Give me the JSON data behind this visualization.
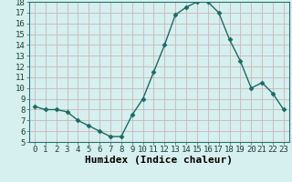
{
  "x": [
    0,
    1,
    2,
    3,
    4,
    5,
    6,
    7,
    8,
    9,
    10,
    11,
    12,
    13,
    14,
    15,
    16,
    17,
    18,
    19,
    20,
    21,
    22,
    23
  ],
  "y": [
    8.3,
    8.0,
    8.0,
    7.8,
    7.0,
    6.5,
    6.0,
    5.5,
    5.5,
    7.5,
    9.0,
    11.5,
    14.0,
    16.8,
    17.5,
    18.0,
    18.0,
    17.0,
    14.5,
    12.5,
    10.0,
    10.5,
    9.5,
    8.0
  ],
  "xlabel": "Humidex (Indice chaleur)",
  "ylim": [
    5,
    18
  ],
  "xlim": [
    -0.5,
    23.5
  ],
  "yticks": [
    5,
    6,
    7,
    8,
    9,
    10,
    11,
    12,
    13,
    14,
    15,
    16,
    17,
    18
  ],
  "xticks": [
    0,
    1,
    2,
    3,
    4,
    5,
    6,
    7,
    8,
    9,
    10,
    11,
    12,
    13,
    14,
    15,
    16,
    17,
    18,
    19,
    20,
    21,
    22,
    23
  ],
  "xtick_labels": [
    "0",
    "1",
    "2",
    "3",
    "4",
    "5",
    "6",
    "7",
    "8",
    "9",
    "10",
    "11",
    "12",
    "13",
    "14",
    "15",
    "16",
    "17",
    "18",
    "19",
    "20",
    "21",
    "22",
    "23"
  ],
  "line_color": "#1a6b62",
  "marker": "D",
  "marker_size": 2.5,
  "bg_color": "#d6efef",
  "grid_color": "#c8b8b8",
  "tick_fontsize": 6.5,
  "xlabel_fontsize": 8
}
